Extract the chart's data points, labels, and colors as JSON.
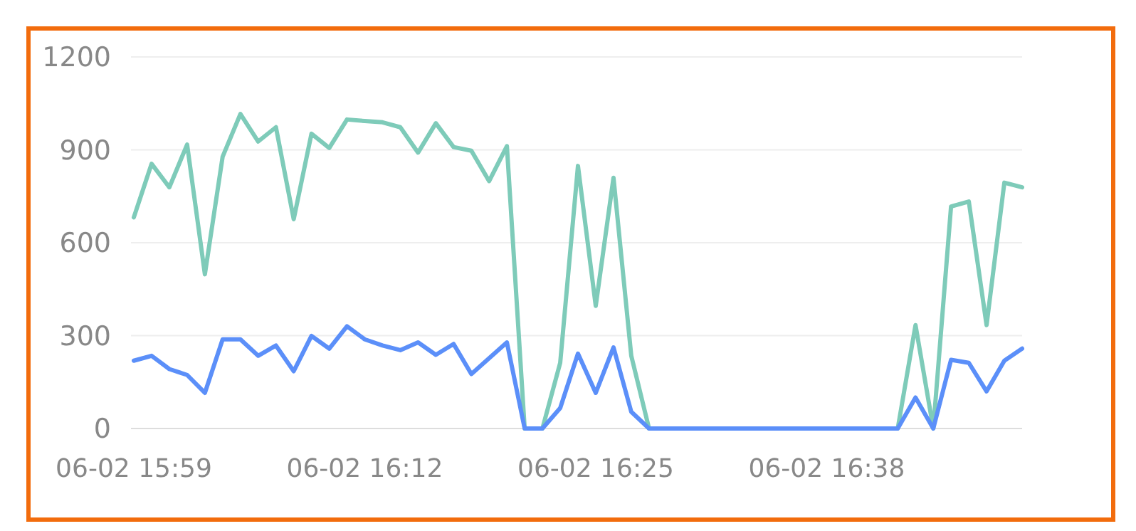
{
  "chart_data": {
    "type": "line",
    "categories": [
      "06-02 15:59",
      null,
      null,
      null,
      null,
      null,
      null,
      null,
      null,
      null,
      null,
      null,
      null,
      "06-02 16:12",
      null,
      null,
      null,
      null,
      null,
      null,
      null,
      null,
      null,
      null,
      null,
      null,
      "06-02 16:25",
      null,
      null,
      null,
      null,
      null,
      null,
      null,
      null,
      null,
      null,
      null,
      null,
      "06-02 16:38",
      null,
      null,
      null,
      null,
      null,
      null,
      null,
      null,
      null,
      null,
      null
    ],
    "series": [
      {
        "color": "#7ecbb9",
        "values": [
          682,
          855,
          779,
          917,
          498,
          878,
          1016,
          927,
          973,
          676,
          952,
          906,
          998,
          993,
          989,
          973,
          891,
          986,
          909,
          897,
          799,
          912,
          0,
          0,
          212,
          848,
          396,
          810,
          235,
          0,
          0,
          0,
          0,
          0,
          0,
          0,
          0,
          0,
          0,
          0,
          0,
          0,
          0,
          0,
          334,
          0,
          717,
          733,
          334,
          794,
          779
        ]
      },
      {
        "color": "#5b8ff9",
        "values": [
          219,
          235,
          192,
          173,
          115,
          288,
          288,
          235,
          268,
          185,
          299,
          258,
          330,
          288,
          268,
          253,
          278,
          238,
          273,
          176,
          227,
          278,
          0,
          0,
          66,
          242,
          115,
          262,
          54,
          0,
          0,
          0,
          0,
          0,
          0,
          0,
          0,
          0,
          0,
          0,
          0,
          0,
          0,
          0,
          100,
          0,
          222,
          212,
          120,
          219,
          258
        ]
      }
    ],
    "ylim": [
      0,
      1200
    ],
    "yticks": [
      0,
      300,
      600,
      900,
      1200
    ],
    "grid": "y",
    "line_style": "solid",
    "marker": "none"
  }
}
